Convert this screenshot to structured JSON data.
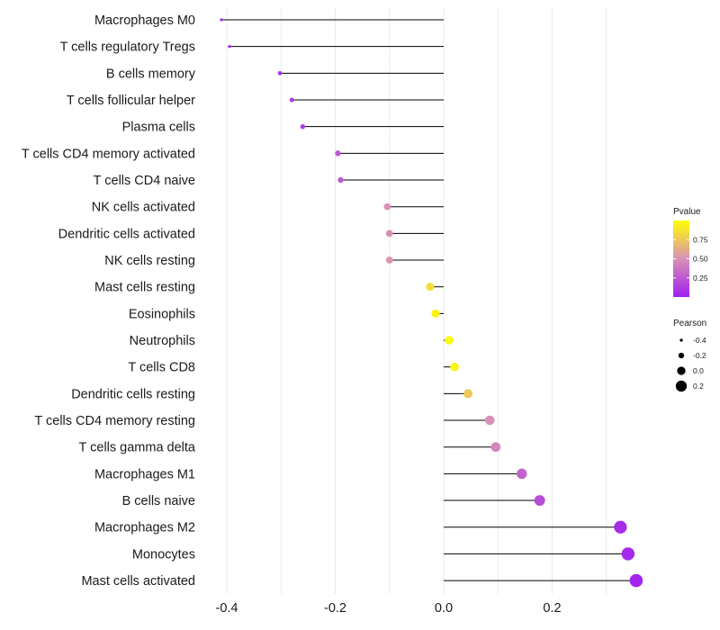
{
  "chart_data": {
    "type": "lollipop",
    "categories": [
      "Macrophages M0",
      "T cells regulatory  Tregs",
      "B cells memory",
      "T cells follicular helper",
      "Plasma cells",
      "T cells CD4 memory activated",
      "T cells CD4 naive",
      "NK cells activated",
      "Dendritic cells activated",
      "NK cells resting",
      "Mast cells resting",
      "Eosinophils",
      "Neutrophils",
      "T cells CD8",
      "Dendritic cells resting",
      "T cells CD4 memory resting",
      "T cells gamma delta",
      "Macrophages M1",
      "B cells naive",
      "Macrophages M2",
      "Monocytes",
      "Mast cells activated"
    ],
    "pearson": [
      -0.41,
      -0.395,
      -0.302,
      -0.28,
      -0.26,
      -0.195,
      -0.19,
      -0.104,
      -0.1,
      -0.1,
      -0.025,
      -0.015,
      0.01,
      0.02,
      0.045,
      0.085,
      0.096,
      0.144,
      0.177,
      0.326,
      0.34,
      0.355
    ],
    "pvalue": [
      0.02,
      0.03,
      0.1,
      0.12,
      0.13,
      0.25,
      0.26,
      0.5,
      0.5,
      0.52,
      0.85,
      0.95,
      0.98,
      0.95,
      0.75,
      0.5,
      0.45,
      0.3,
      0.2,
      0.05,
      0.04,
      0.02
    ],
    "x_ticks": [
      "-0.4",
      "-0.2",
      "0.0",
      "0.2"
    ],
    "x_tick_values": [
      -0.4,
      -0.2,
      0.0,
      0.2
    ],
    "xlim": [
      -0.412,
      0.36
    ],
    "legend_pvalue": {
      "title": "Pvalue",
      "labels": [
        "0.75",
        "0.50",
        "0.25"
      ],
      "values": [
        0.75,
        0.5,
        0.25
      ],
      "range": [
        0.0,
        1.0
      ],
      "color_low": "#a020f0",
      "color_mid": "#d991b5",
      "color_high": "#ffff00"
    },
    "legend_pearson": {
      "title": "Pearson",
      "labels": [
        "-0.4",
        "-0.2",
        "0.0",
        "0.2"
      ],
      "values": [
        -0.4,
        -0.2,
        0.0,
        0.2
      ]
    },
    "colors": {
      "grid": "#ebebeb",
      "segment": "#000000",
      "text": "#1a1a1a"
    }
  }
}
